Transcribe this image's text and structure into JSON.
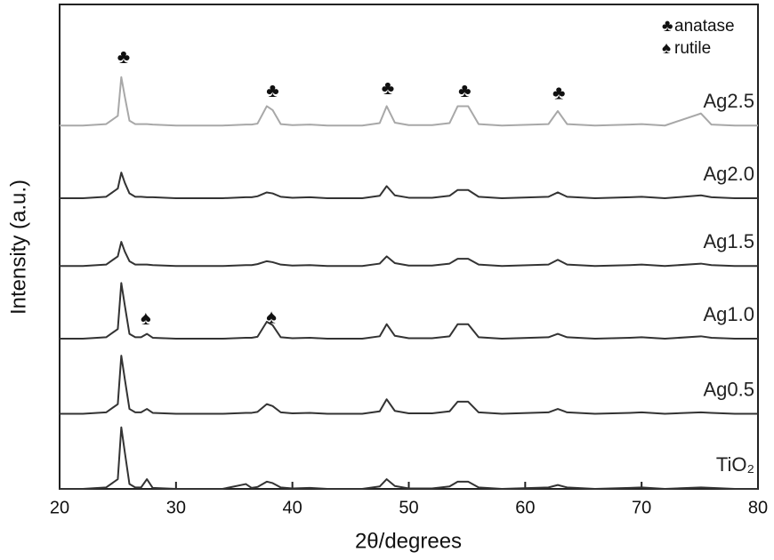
{
  "chart_data": {
    "type": "line",
    "x_label": "2θ/degrees",
    "y_label": "Intensity (a.u.)",
    "xlim": [
      20,
      80
    ],
    "xticks": [
      20,
      30,
      40,
      50,
      60,
      70,
      80
    ],
    "ylim": [
      0,
      100
    ],
    "x": [
      20,
      22,
      24,
      25,
      25.3,
      25.6,
      26,
      26.5,
      27,
      27.5,
      28,
      30,
      32,
      34,
      36,
      36.5,
      37,
      37.8,
      38.3,
      39,
      40,
      41.5,
      43,
      46,
      47.5,
      48.1,
      48.8,
      50,
      52,
      53.5,
      54.2,
      55.1,
      56,
      58,
      62,
      62.8,
      63.6,
      66,
      69,
      70,
      72,
      75.1,
      76,
      78,
      80
    ],
    "series": [
      {
        "name": "TiO₂",
        "color": "#333333",
        "values": [
          0,
          0,
          0.3,
          2,
          12.7,
          7.6,
          1,
          0.3,
          0.3,
          2,
          0.2,
          0,
          0,
          0,
          1,
          0.2,
          0.4,
          1.5,
          1.2,
          0.3,
          0.1,
          0.2,
          0,
          0,
          0.5,
          2,
          0.6,
          0.1,
          0.1,
          0.5,
          1.5,
          1.5,
          0.3,
          0,
          0.3,
          0.8,
          0.3,
          0,
          0.2,
          0.3,
          0,
          0.3,
          0.2,
          0,
          0
        ]
      },
      {
        "name": "Ag0.5",
        "color": "#333333",
        "values": [
          15.5,
          15.5,
          15.8,
          17.5,
          27.5,
          22.7,
          16.5,
          15.8,
          15.8,
          16.5,
          15.7,
          15.5,
          15.5,
          15.5,
          15.7,
          15.7,
          15.9,
          17.5,
          17.1,
          15.8,
          15.6,
          15.7,
          15.5,
          15.5,
          16,
          18.5,
          16.1,
          15.6,
          15.6,
          16,
          18,
          18,
          15.8,
          15.5,
          15.8,
          16.5,
          15.8,
          15.5,
          15.7,
          15.8,
          15.5,
          15.8,
          15.7,
          15.5,
          15.5
        ]
      },
      {
        "name": "Ag1.0",
        "color": "#333333",
        "values": [
          31,
          31,
          31.3,
          33,
          42.5,
          37.9,
          32,
          31.3,
          31.3,
          32,
          31.2,
          31,
          31,
          31,
          31.2,
          31.2,
          31.4,
          34.5,
          33.8,
          31.3,
          31.1,
          31.2,
          31,
          31,
          31.5,
          34,
          31.6,
          31.1,
          31.1,
          31.5,
          34,
          34,
          31.3,
          31,
          31.3,
          32,
          31.3,
          31,
          31.2,
          31.3,
          31,
          31.5,
          31.2,
          31,
          31
        ]
      },
      {
        "name": "Ag1.5",
        "color": "#333333",
        "values": [
          46,
          46,
          46.3,
          48,
          51,
          49,
          47,
          46.3,
          46.3,
          46.3,
          46.2,
          46,
          46,
          46,
          46.2,
          46.2,
          46.4,
          47,
          46.8,
          46.3,
          46.1,
          46.2,
          46,
          46,
          46.5,
          48,
          46.6,
          46.1,
          46.1,
          46.5,
          47.5,
          47.5,
          46.3,
          46,
          46.3,
          47.3,
          46.3,
          46,
          46.2,
          46.3,
          46,
          46.5,
          46.2,
          46,
          46
        ]
      },
      {
        "name": "Ag2.0",
        "color": "#333333",
        "values": [
          60,
          60,
          60.3,
          62,
          65.3,
          63.2,
          61,
          60.3,
          60.3,
          60.2,
          60.2,
          60,
          60,
          60,
          60.2,
          60.2,
          60.4,
          61.2,
          61,
          60.3,
          60.1,
          60.2,
          60,
          60,
          60.5,
          62.5,
          60.6,
          60.1,
          60.1,
          60.5,
          61.7,
          61.7,
          60.3,
          60,
          60.3,
          61.2,
          60.3,
          60,
          60.2,
          60.3,
          60,
          60.6,
          60.2,
          60,
          60
        ]
      },
      {
        "name": "Ag2.5",
        "color": "#a8a8a8",
        "values": [
          75,
          75,
          75.3,
          77,
          85,
          81,
          76,
          75.3,
          75.3,
          75.3,
          75.2,
          75,
          75,
          75,
          75.2,
          75.2,
          75.4,
          79,
          78.2,
          75.3,
          75.1,
          75.2,
          75,
          75,
          75.5,
          79,
          75.6,
          75.1,
          75.1,
          75.5,
          79,
          79,
          75.3,
          75,
          75.3,
          78,
          75.3,
          75,
          75.2,
          75.3,
          75,
          77.5,
          75.2,
          75,
          75
        ]
      }
    ],
    "phase_markers": [
      {
        "symbol": "♣",
        "x": 25.5,
        "y": 89
      },
      {
        "symbol": "♣",
        "x": 38.3,
        "y": 82
      },
      {
        "symbol": "♣",
        "x": 48.2,
        "y": 82.5
      },
      {
        "symbol": "♣",
        "x": 54.8,
        "y": 82
      },
      {
        "symbol": "♣",
        "x": 62.9,
        "y": 81.5
      },
      {
        "symbol": "♠",
        "x": 27.4,
        "y": 35
      },
      {
        "symbol": "♠",
        "x": 38.2,
        "y": 35.3
      }
    ],
    "legend": {
      "position": "upper right",
      "entries": [
        {
          "symbol": "♣",
          "label": "anatase"
        },
        {
          "symbol": "♠",
          "label": "rutile"
        }
      ]
    }
  }
}
